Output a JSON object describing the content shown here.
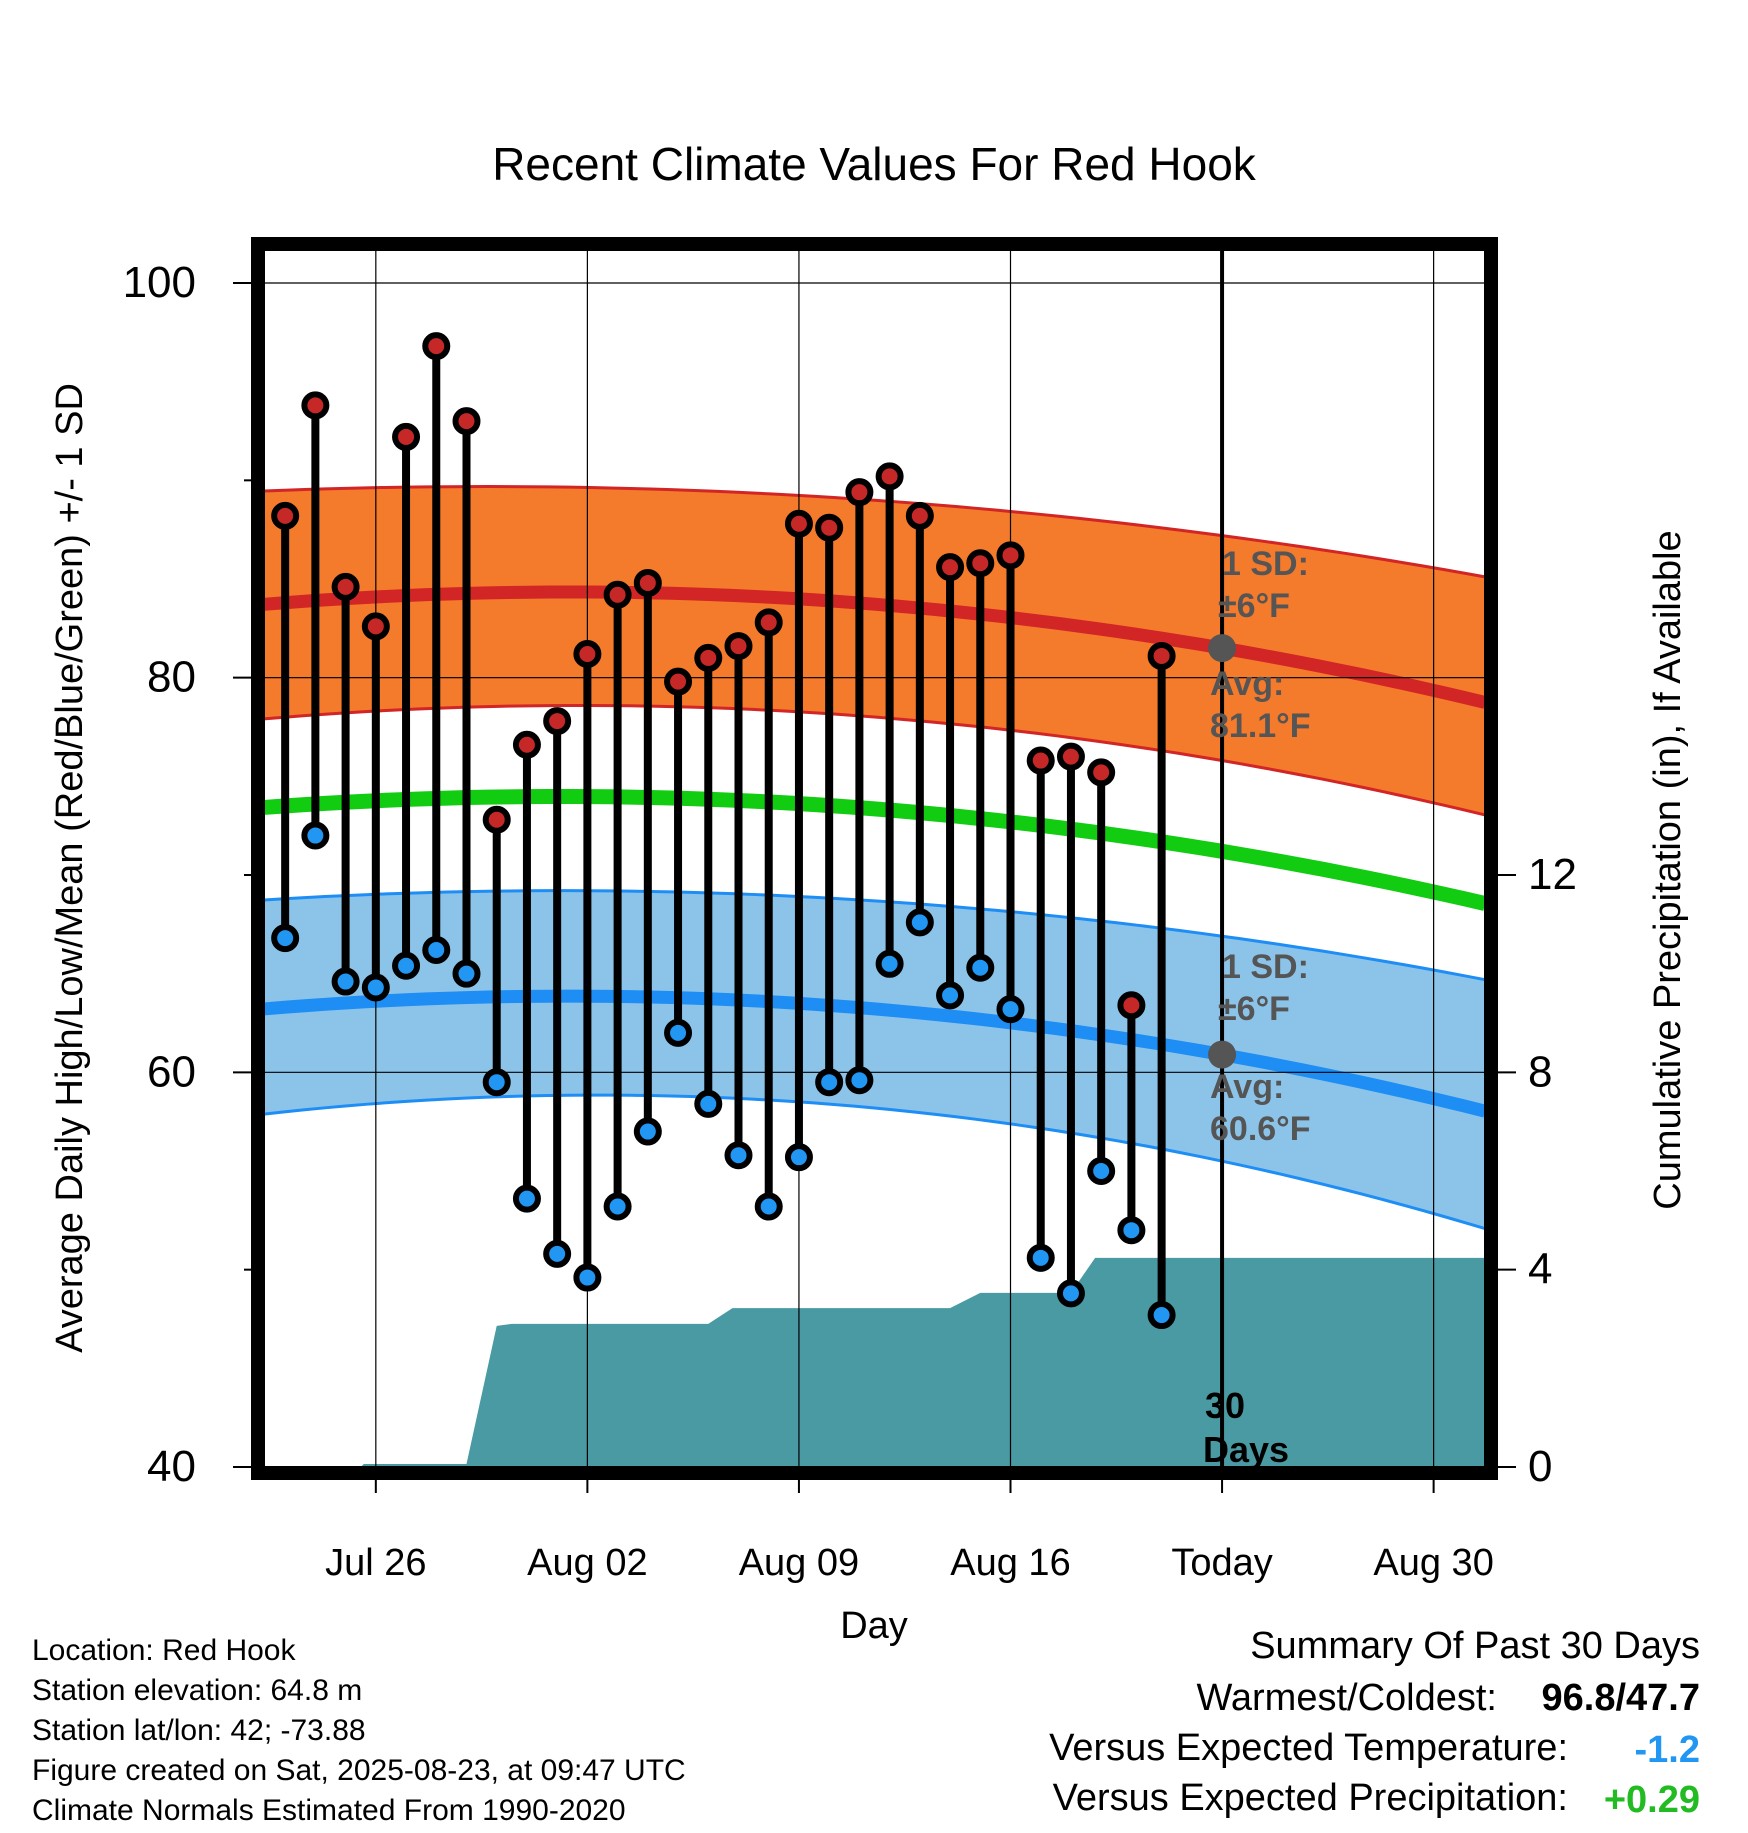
{
  "chart_data": {
    "type": "line",
    "title": "Recent Climate Values For Red Hook",
    "xlabel": "Day",
    "ylabel_left": "Average Daily High/Low/Mean (Red/Blue/Green) +/- 1 SD",
    "ylabel_right": "Cumulative Precipitation (in), If Available",
    "ylim": [
      40,
      100
    ],
    "y_ticks": [
      "40",
      "60",
      "80",
      "100"
    ],
    "y_minor_ticks": [
      50,
      70,
      90
    ],
    "y2lim": [
      0,
      24
    ],
    "y2_ticks": [
      "0",
      "4",
      "8",
      "12"
    ],
    "x_ticks": [
      {
        "day": 3,
        "label": "Jul 26"
      },
      {
        "day": 10,
        "label": "Aug 02"
      },
      {
        "day": 17,
        "label": "Aug 09"
      },
      {
        "day": 24,
        "label": "Aug 16"
      },
      {
        "day": 31,
        "label": "Today"
      },
      {
        "day": 38,
        "label": "Aug 30"
      }
    ],
    "x_range_days": [
      -0.7,
      39.7
    ],
    "today_day": 31,
    "grid": true,
    "days": [
      "Jul 24",
      "Jul 25",
      "Jul 26",
      "Jul 27",
      "Jul 28",
      "Jul 29",
      "Jul 30",
      "Jul 31",
      "Aug 01",
      "Aug 02",
      "Aug 03",
      "Aug 04",
      "Aug 05",
      "Aug 06",
      "Aug 07",
      "Aug 08",
      "Aug 09",
      "Aug 10",
      "Aug 11",
      "Aug 12",
      "Aug 13",
      "Aug 14",
      "Aug 15",
      "Aug 16",
      "Aug 17",
      "Aug 18",
      "Aug 19",
      "Aug 20",
      "Aug 21",
      "Aug 22"
    ],
    "series": [
      {
        "name": "High",
        "color": "#cc2222",
        "values": [
          88.2,
          93.8,
          84.6,
          82.6,
          92.2,
          96.8,
          93.0,
          72.8,
          76.6,
          77.8,
          81.2,
          84.2,
          84.8,
          79.8,
          81.0,
          81.6,
          82.8,
          87.8,
          87.6,
          89.4,
          90.2,
          88.2,
          85.6,
          85.8,
          86.2,
          75.8,
          76.0,
          75.2,
          63.4,
          81.1
        ]
      },
      {
        "name": "Low",
        "color": "#2196f3",
        "values": [
          66.8,
          72.0,
          64.6,
          64.3,
          65.4,
          66.2,
          65.0,
          59.5,
          53.6,
          50.8,
          49.6,
          53.2,
          57.0,
          62.0,
          58.4,
          55.8,
          53.2,
          55.7,
          59.5,
          59.6,
          65.5,
          67.6,
          63.9,
          65.3,
          63.2,
          50.6,
          48.8,
          55.0,
          52.0,
          47.7
        ]
      }
    ],
    "normals": {
      "high_mean": [
        83.8,
        81.5,
        79.0
      ],
      "high_upper": [
        89.5,
        87.2,
        85.3
      ],
      "high_lower": [
        78.0,
        75.8,
        73.3
      ],
      "mean": [
        73.5,
        71.2,
        68.8
      ],
      "low_mean": [
        63.3,
        60.9,
        58.3
      ],
      "low_upper": [
        68.8,
        66.9,
        64.9
      ],
      "low_lower": [
        58.0,
        55.5,
        52.4
      ],
      "days_at": [
        0,
        31,
        39
      ]
    },
    "precip_cumulative": {
      "days": [
        -0.7,
        2.5,
        2.6,
        6.0,
        7.0,
        7.5,
        14.0,
        14.8,
        22.0,
        23.0,
        25.0,
        26.0,
        26.8,
        31.0,
        39.7
      ],
      "values": [
        0.0,
        0.0,
        0.06,
        0.06,
        2.86,
        2.9,
        2.9,
        3.22,
        3.22,
        3.53,
        3.53,
        3.53,
        4.24,
        4.24,
        4.24
      ]
    },
    "colors": {
      "high_band": "#f47a2c",
      "high_line": "#d22525",
      "mean_line": "#11cc11",
      "low_band": "#86c1e8",
      "low_line": "#1e8ef5",
      "precip_fill": "#4a9aa3",
      "dot_high": "#c62828",
      "dot_low": "#2196f3",
      "today_dot": "#555555",
      "annotation_text": "#555555"
    },
    "annotations": {
      "high_sd_label": "1 SD:",
      "high_sd_value": "±6°F",
      "high_avg_label": "Avg:",
      "high_avg_value": "81.1°F",
      "low_sd_label": "1 SD:",
      "low_sd_value": "±6°F",
      "low_avg_label": "Avg:",
      "low_avg_value": "60.6°F",
      "days_number": "30",
      "days_word": "Days"
    }
  },
  "info": {
    "location": "Location: Red Hook",
    "elevation": "Station elevation: 64.8 m",
    "latlon": "Station lat/lon: 42; -73.88",
    "created": "Figure created on Sat, 2025-08-23, at 09:47 UTC",
    "normals": "Climate Normals Estimated From 1990-2020"
  },
  "summary": {
    "title": "Summary Of Past 30 Days",
    "warm_cold_label": "Warmest/Coldest:",
    "warm_value": "96.8",
    "slash": "/",
    "cold_value": "47.7",
    "temp_label": "Versus Expected Temperature:",
    "temp_value": "-1.2",
    "temp_color": "#2196f3",
    "precip_label": "Versus Expected Precipitation:",
    "precip_value": "+0.29",
    "precip_color": "#22bb22"
  }
}
